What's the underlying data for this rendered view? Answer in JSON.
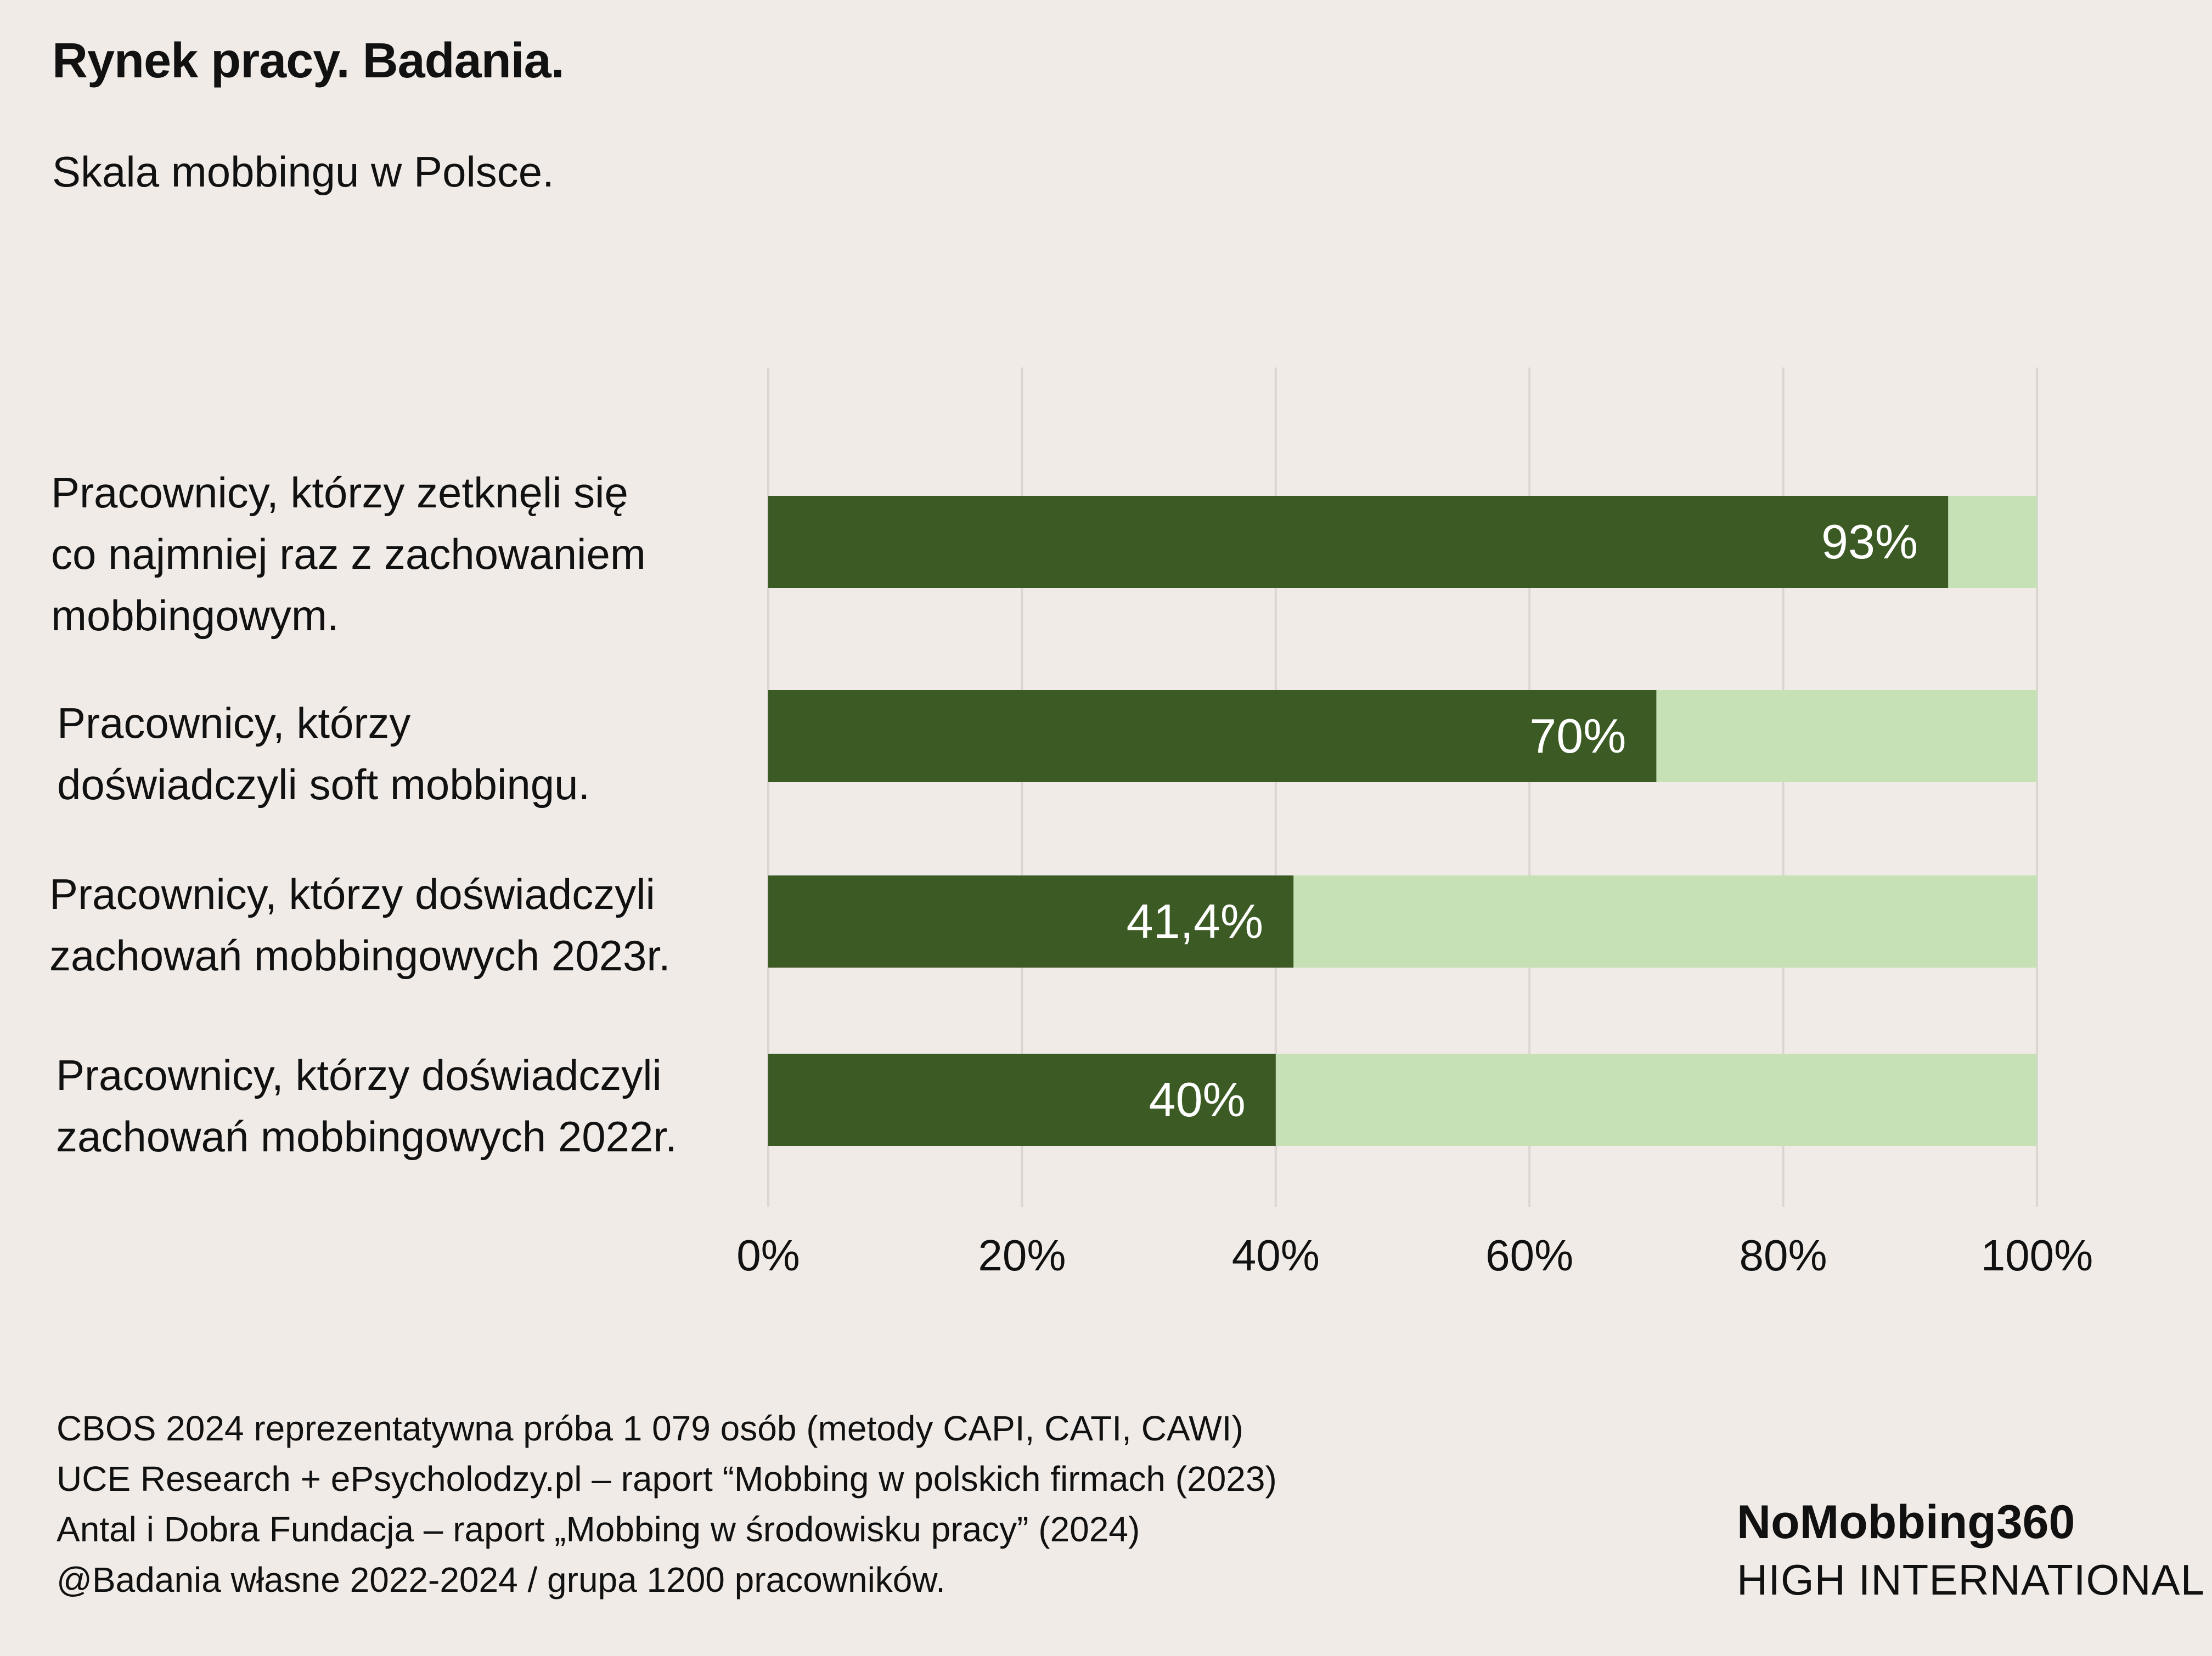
{
  "header": {
    "title": "Rynek pracy. Badania.",
    "subtitle": "Skala mobbingu w Polsce."
  },
  "chart_data": {
    "type": "bar",
    "orientation": "horizontal",
    "stacked": true,
    "categories": [
      [
        "Pracownicy, którzy zetknęli się",
        "co najmniej raz z zachowaniem",
        "mobbingowym."
      ],
      [
        "Pracownicy, którzy",
        "doświadczyli soft mobbingu."
      ],
      [
        "Pracownicy, którzy doświadczyli",
        "zachowań mobbingowych 2023r."
      ],
      [
        "Pracownicy, którzy doświadczyli",
        "zachowań mobbingowych 2022r."
      ]
    ],
    "values": [
      93,
      70,
      41.4,
      40
    ],
    "data_labels": [
      "93%",
      "70%",
      "41,4%",
      "40%"
    ],
    "xlim": [
      0,
      100
    ],
    "x_ticks": [
      "0%",
      "20%",
      "40%",
      "60%",
      "80%",
      "100%"
    ],
    "grid": true,
    "colors": {
      "value": "#3b5a24",
      "remainder": "#c6e1b5",
      "grid": "#dcd6d2"
    }
  },
  "footer": {
    "sources": [
      "CBOS 2024 reprezentatywna próba 1 079 osób (metody CAPI, CATI, CAWI)",
      "UCE Research + ePsycholodzy.pl – raport “Mobbing w polskich firmach (2023)",
      "Antal i Dobra Fundacja – raport „Mobbing w środowisku pracy” (2024)",
      "@Badania własne 2022-2024 / grupa 1200 pracowników."
    ],
    "brand_name": "NoMobbing360",
    "brand_sub": "HIGH INTERNATIONAL"
  }
}
